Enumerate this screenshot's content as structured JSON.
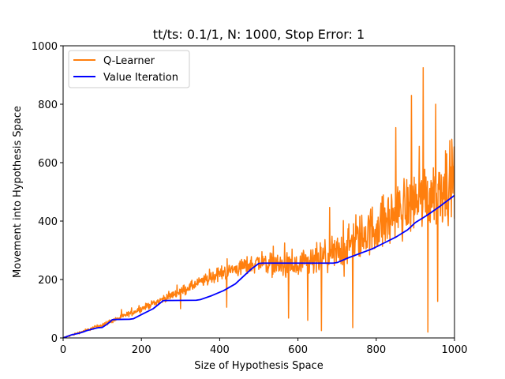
{
  "chart_data": {
    "type": "line",
    "title": "tt/ts: 0.1/1, N: 1000, Stop Error: 1",
    "xlabel": "Size of Hypothesis Space",
    "ylabel": "Movement into Hypothesis Space",
    "xlim": [
      0,
      1000
    ],
    "ylim": [
      0,
      1000
    ],
    "xticks": [
      0,
      200,
      400,
      600,
      800,
      1000
    ],
    "yticks": [
      0,
      200,
      400,
      600,
      800,
      1000
    ],
    "xtick_labels": [
      "0",
      "200",
      "400",
      "600",
      "800",
      "1000"
    ],
    "ytick_labels": [
      "0",
      "200",
      "400",
      "600",
      "800",
      "1000"
    ],
    "grid": false,
    "legend_position": "top-left",
    "series": [
      {
        "name": "Q-Learner",
        "color": "#ff7f0e",
        "style": "noisy",
        "x_range": [
          1,
          1000
        ],
        "trend": [
          [
            0,
            0
          ],
          [
            100,
            45
          ],
          [
            200,
            100
          ],
          [
            300,
            160
          ],
          [
            400,
            220
          ],
          [
            500,
            260
          ],
          [
            600,
            240
          ],
          [
            700,
            290
          ],
          [
            800,
            380
          ],
          [
            900,
            470
          ],
          [
            1000,
            540
          ]
        ],
        "noise_envelope": [
          [
            0,
            3
          ],
          [
            100,
            10
          ],
          [
            200,
            15
          ],
          [
            300,
            22
          ],
          [
            400,
            35
          ],
          [
            500,
            50
          ],
          [
            600,
            70
          ],
          [
            700,
            95
          ],
          [
            800,
            130
          ],
          [
            900,
            160
          ],
          [
            1000,
            180
          ]
        ],
        "spikes": [
          [
            920,
            925
          ],
          [
            890,
            830
          ],
          [
            952,
            800
          ],
          [
            980,
            630
          ],
          [
            932,
            20
          ],
          [
            660,
            25
          ],
          [
            576,
            68
          ],
          [
            740,
            35
          ],
          [
            418,
            105
          ],
          [
            625,
            60
          ],
          [
            957,
            125
          ],
          [
            300,
            100
          ],
          [
            850,
            720
          ]
        ]
      },
      {
        "name": "Value Iteration",
        "color": "#0000ff",
        "style": "solid",
        "x": [
          0,
          20,
          40,
          50,
          60,
          80,
          90,
          100,
          110,
          120,
          125,
          130,
          170,
          180,
          200,
          230,
          255,
          260,
          340,
          350,
          380,
          410,
          440,
          460,
          480,
          500,
          510,
          690,
          700,
          730,
          760,
          790,
          820,
          850,
          880,
          900,
          930,
          960,
          1000
        ],
        "y": [
          0,
          10,
          16,
          20,
          25,
          32,
          35,
          36,
          45,
          55,
          62,
          63,
          64,
          66,
          80,
          100,
          127,
          128,
          129,
          131,
          145,
          162,
          185,
          210,
          235,
          255,
          256,
          256,
          258,
          275,
          290,
          305,
          325,
          345,
          370,
          395,
          420,
          448,
          488
        ]
      }
    ]
  }
}
